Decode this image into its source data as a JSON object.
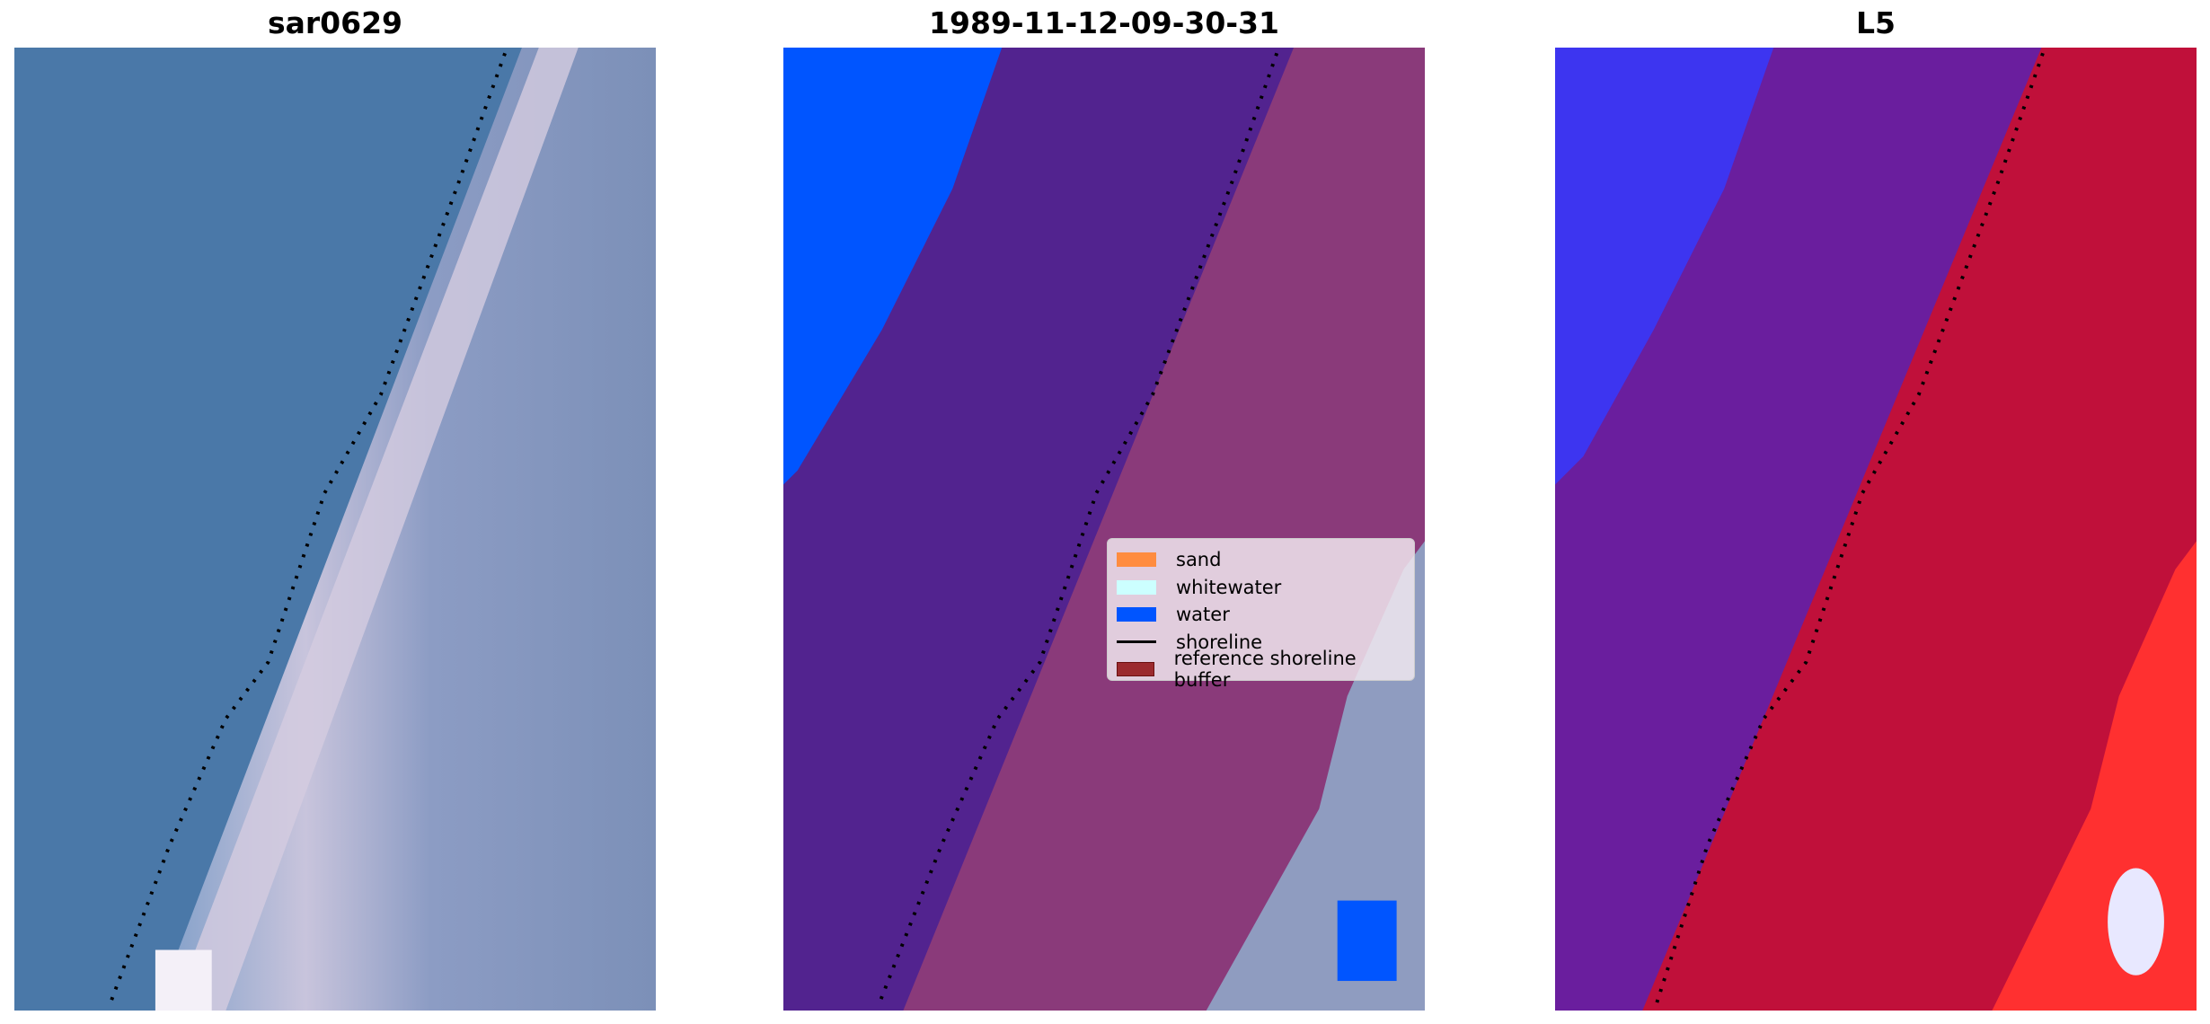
{
  "panels": [
    {
      "title": "sar0629"
    },
    {
      "title": "1989-11-12-09-30-31"
    },
    {
      "title": "L5"
    }
  ],
  "legend": {
    "items": [
      {
        "label": "sand",
        "color": "#ff8c3f",
        "kind": "patch"
      },
      {
        "label": "whitewater",
        "color": "#ccffff",
        "kind": "patch"
      },
      {
        "label": "water",
        "color": "#0055ff",
        "kind": "patch"
      },
      {
        "label": "shoreline",
        "color": "#000000",
        "kind": "line"
      },
      {
        "label": "reference shoreline buffer",
        "color": "#9b2a2e",
        "kind": "patch"
      }
    ]
  },
  "colors": {
    "water": "#0055ff",
    "land_purple": "#52238f",
    "buffer_pink": "#8a3a7a"
  }
}
